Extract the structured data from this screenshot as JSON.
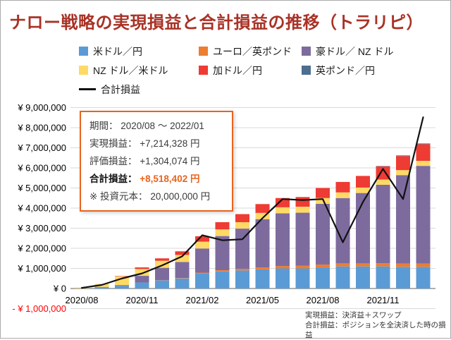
{
  "title": "ナロー戦略の実現損益と合計損益の推移（トラリピ）",
  "colors": {
    "title_color": "#a93226",
    "annotation_accent": "#e8641e",
    "negative_label": "#ff0000"
  },
  "annotation": {
    "rows": [
      {
        "label": "期間：",
        "value": "2020/08 ～ 2022/01"
      },
      {
        "label": "実現損益：",
        "value": "+7,214,328 円"
      },
      {
        "label": "評価損益：",
        "value": "+1,304,074 円"
      },
      {
        "label": "合計損益：",
        "value": "+8,518,402 円"
      },
      {
        "label": "※ 投資元本：",
        "value": "20,000,000 円"
      }
    ]
  },
  "footnotes": [
    "実現損益：決済益＋スワップ",
    "合計損益：ポジションを全決済した時の損益"
  ],
  "chart_data": {
    "type": "bar",
    "subtype": "stacked-bar-with-line",
    "title": "ナロー戦略の実現損益と合計損益の推移（トラリピ）",
    "xlabel": "",
    "ylabel": "",
    "ylim": [
      -1000000,
      9000000
    ],
    "ytick": 1000000,
    "grid": true,
    "legend_position": "top",
    "x_months": [
      "2020/08",
      "2020/09",
      "2020/10",
      "2020/11",
      "2020/12",
      "2021/01",
      "2021/02",
      "2021/03",
      "2021/04",
      "2021/05",
      "2021/06",
      "2021/07",
      "2021/08",
      "2021/09",
      "2021/10",
      "2021/11",
      "2021/12",
      "2022/01"
    ],
    "x_tick_shown": [
      "2020/08",
      "2020/11",
      "2021/02",
      "2021/05",
      "2021/08",
      "2021/11"
    ],
    "series": [
      {
        "name": "米ドル／円",
        "color": "#5b9bd5",
        "values": [
          10000,
          80000,
          130000,
          300000,
          400000,
          500000,
          750000,
          850000,
          900000,
          950000,
          1000000,
          1000000,
          1050000,
          1100000,
          1100000,
          1100000,
          1080000,
          1080000
        ]
      },
      {
        "name": "ユーロ／英ポンド",
        "color": "#ed7d31",
        "values": [
          0,
          0,
          0,
          0,
          10000,
          20000,
          40000,
          60000,
          80000,
          100000,
          120000,
          130000,
          140000,
          150000,
          150000,
          160000,
          160000,
          160000
        ]
      },
      {
        "name": "豪ドル／ NZ ドル",
        "color": "#7d6b9e",
        "values": [
          0,
          0,
          40000,
          330000,
          620000,
          800000,
          1200000,
          1700000,
          2000000,
          2400000,
          2620000,
          2640000,
          3020000,
          3250000,
          3500000,
          3900000,
          4400000,
          4860000
        ]
      },
      {
        "name": "NZ ドル／米ドル",
        "color": "#ffd966",
        "values": [
          40000,
          150000,
          430000,
          340000,
          350000,
          350000,
          340000,
          330000,
          320000,
          310000,
          300000,
          300000,
          290000,
          280000,
          270000,
          260000,
          250000,
          250000
        ]
      },
      {
        "name": "加ドル／円",
        "color": "#ee3b33",
        "values": [
          0,
          0,
          20000,
          80000,
          120000,
          180000,
          270000,
          360000,
          400000,
          440000,
          460000,
          480000,
          500000,
          520000,
          580000,
          650000,
          700000,
          830000
        ]
      },
      {
        "name": "英ポンド／円",
        "color": "#4c6e8f",
        "values": [
          0,
          0,
          0,
          0,
          0,
          0,
          0,
          0,
          0,
          0,
          0,
          0,
          0,
          0,
          0,
          20000,
          30000,
          34328
        ]
      }
    ],
    "line": {
      "name": "合計損益",
      "color": "#111111",
      "values": [
        30000,
        180000,
        500000,
        750000,
        1150000,
        1600000,
        2650000,
        2400000,
        2450000,
        3500000,
        4450000,
        4400000,
        4450000,
        2300000,
        4300000,
        5950000,
        4450000,
        8518402
      ]
    }
  }
}
